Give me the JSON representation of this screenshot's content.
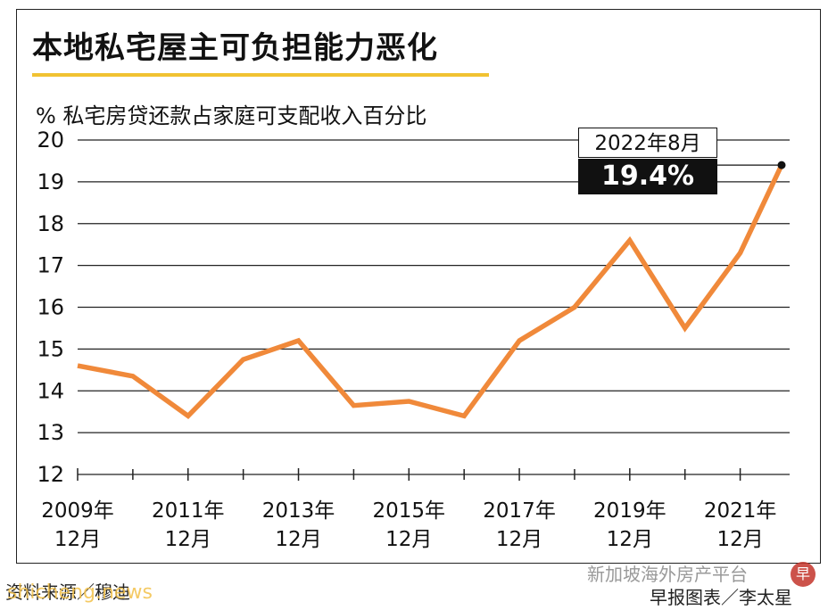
{
  "header": {
    "title": "本地私宅屋主可负担能力恶化",
    "subtitle": "%  私宅房贷还款占家庭可支配收入百分比"
  },
  "callout": {
    "date": "2022年8月",
    "value": "19.4%"
  },
  "footer": {
    "source": "资料来源／穆迪",
    "credit": "早报图表／李太星"
  },
  "watermarks": {
    "left": "shicheng.news",
    "right": "新加坡海外房产平台",
    "logo": "早"
  },
  "colors": {
    "line": "#f0893a",
    "title_rule": "#f1c232",
    "grid": "#222222"
  },
  "chart_data": {
    "type": "line",
    "ylim": [
      12,
      20
    ],
    "yticks": [
      12,
      13,
      14,
      15,
      16,
      17,
      18,
      19,
      20
    ],
    "xlim": [
      2009.92,
      2022.67
    ],
    "xticks": [
      {
        "x": 2009.92,
        "line1": "2009年",
        "line2": "12月"
      },
      {
        "x": 2011.92,
        "line1": "2011年",
        "line2": "12月"
      },
      {
        "x": 2013.92,
        "line1": "2013年",
        "line2": "12月"
      },
      {
        "x": 2015.92,
        "line1": "2015年",
        "line2": "12月"
      },
      {
        "x": 2017.92,
        "line1": "2017年",
        "line2": "12月"
      },
      {
        "x": 2019.92,
        "line1": "2019年",
        "line2": "12月"
      },
      {
        "x": 2021.92,
        "line1": "2021年",
        "line2": "12月"
      }
    ],
    "minor_xticks": [
      2010.92,
      2012.92,
      2014.92,
      2016.92,
      2018.92,
      2020.92
    ],
    "x": [
      2009.92,
      2010.92,
      2011.92,
      2012.92,
      2013.92,
      2014.92,
      2015.92,
      2016.92,
      2017.92,
      2018.92,
      2019.92,
      2020.92,
      2021.92,
      2022.67
    ],
    "values": [
      14.6,
      14.35,
      13.4,
      14.75,
      15.2,
      13.65,
      13.75,
      13.4,
      15.2,
      16.0,
      17.6,
      15.5,
      17.3,
      19.4
    ],
    "highlight_index": 13
  }
}
